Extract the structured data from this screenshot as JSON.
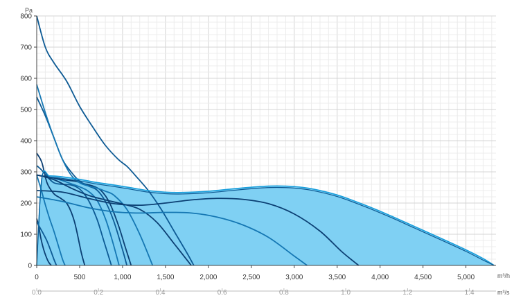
{
  "chart_data": {
    "type": "line",
    "y_unit": "Pa",
    "x_unit": "m³/h",
    "x2_unit": "m³/s",
    "xlim": [
      0,
      5350
    ],
    "ylim": [
      0,
      800
    ],
    "x_ticks": [
      0,
      500,
      1000,
      1500,
      2000,
      2500,
      3000,
      3500,
      4000,
      4500,
      5000
    ],
    "x_tick_labels": [
      "0",
      "500",
      "1,000",
      "1,500",
      "2,000",
      "2,500",
      "3,000",
      "3,500",
      "4,000",
      "4,500",
      "5,000"
    ],
    "x2_ticks": [
      0,
      0.2,
      0.4,
      0.6,
      0.8,
      1.0,
      1.2,
      1.4
    ],
    "x2_tick_labels": [
      "0.0",
      "0.2",
      "0.4",
      "0.6",
      "0.8",
      "1.0",
      "1.2",
      "1.4"
    ],
    "y_ticks": [
      0,
      100,
      200,
      300,
      400,
      500,
      600,
      700,
      800
    ],
    "y_tick_labels": [
      "0",
      "100",
      "200",
      "300",
      "400",
      "500",
      "600",
      "700",
      "800"
    ],
    "grid": true,
    "colors": {
      "area_fill": "#7fd0f3",
      "envelope_line": "#1a9fdc",
      "curve_dark": "#0b3f73",
      "curve_mid": "#0d5a94",
      "curve_light": "#1577b3"
    },
    "envelope": {
      "x": [
        0,
        60,
        150,
        300,
        500,
        700,
        900,
        1100,
        1300,
        1500,
        1700,
        2000,
        2300,
        2600,
        2800,
        3000,
        3200,
        3500,
        3800,
        4100,
        4400,
        4700,
        5000,
        5200,
        5330
      ],
      "y": [
        0,
        280,
        287,
        284,
        276,
        266,
        258,
        249,
        240,
        235,
        234,
        238,
        246,
        253,
        255,
        253,
        246,
        226,
        196,
        162,
        125,
        88,
        50,
        22,
        0
      ]
    },
    "envelope_inner": {
      "x": [
        0,
        60,
        150,
        300,
        500,
        700,
        900,
        1100,
        1300,
        1500,
        1700,
        2000,
        2300,
        2600,
        2800,
        3000,
        3200,
        3500,
        3800,
        4100,
        4400,
        4700,
        5000,
        5200,
        5330
      ],
      "y": [
        0,
        278,
        283,
        279,
        271,
        261,
        253,
        244,
        235,
        230,
        229,
        233,
        241,
        248,
        250,
        248,
        241,
        221,
        191,
        157,
        120,
        83,
        45,
        17,
        0
      ]
    },
    "series": [
      {
        "x": [
          0,
          20,
          50,
          80,
          110,
          140,
          170
        ],
        "y": [
          150,
          130,
          85,
          52,
          28,
          10,
          0
        ]
      },
      {
        "x": [
          0,
          40,
          80,
          120,
          160,
          200,
          230
        ],
        "y": [
          140,
          120,
          100,
          78,
          50,
          20,
          0
        ]
      },
      {
        "x": [
          0,
          50,
          100,
          150,
          200,
          250,
          300,
          330
        ],
        "y": [
          290,
          245,
          195,
          150,
          110,
          65,
          20,
          0
        ]
      },
      {
        "x": [
          0,
          60,
          120,
          200,
          280,
          360,
          440,
          520,
          560
        ],
        "y": [
          360,
          330,
          265,
          230,
          215,
          195,
          140,
          40,
          0
        ]
      },
      {
        "x": [
          0,
          60,
          120,
          200,
          300,
          400,
          500,
          600,
          700,
          780,
          870
        ],
        "y": [
          320,
          305,
          285,
          265,
          260,
          258,
          245,
          210,
          150,
          80,
          0
        ]
      },
      {
        "x": [
          0,
          100,
          200,
          300,
          400,
          500,
          600,
          700,
          800,
          880,
          960
        ],
        "y": [
          290,
          285,
          280,
          272,
          262,
          252,
          238,
          210,
          150,
          80,
          0
        ]
      },
      {
        "x": [
          0,
          150,
          300,
          450,
          550,
          650,
          750,
          850,
          950,
          1030,
          1100
        ],
        "y": [
          290,
          283,
          275,
          270,
          262,
          255,
          240,
          200,
          130,
          60,
          0
        ]
      },
      {
        "x": [
          0,
          100,
          200,
          300,
          400,
          500,
          600,
          700,
          800,
          900,
          1000,
          1050
        ],
        "y": [
          540,
          480,
          410,
          340,
          300,
          270,
          255,
          242,
          205,
          140,
          50,
          0
        ]
      },
      {
        "x": [
          0,
          100,
          200,
          300,
          400,
          500,
          600,
          700,
          800,
          900,
          1050,
          1200,
          1350
        ],
        "y": [
          580,
          490,
          410,
          340,
          290,
          265,
          255,
          248,
          238,
          225,
          180,
          100,
          0
        ]
      },
      {
        "x": [
          0,
          200,
          400,
          600,
          800,
          1000,
          1200,
          1400,
          1600,
          1800
        ],
        "y": [
          290,
          275,
          248,
          225,
          210,
          197,
          180,
          138,
          70,
          0
        ]
      },
      {
        "x": [
          0,
          100,
          200,
          350,
          500,
          650,
          800,
          950,
          1050,
          1150,
          1300,
          1450,
          1600,
          1750,
          1830
        ],
        "y": [
          800,
          700,
          650,
          590,
          510,
          445,
          385,
          340,
          318,
          288,
          240,
          180,
          110,
          40,
          0
        ]
      },
      {
        "x": [
          0,
          300,
          600,
          900,
          1200,
          1500,
          1800,
          2100,
          2400,
          2700,
          3000,
          3150
        ],
        "y": [
          220,
          205,
          185,
          172,
          168,
          170,
          168,
          155,
          130,
          90,
          30,
          0
        ]
      },
      {
        "x": [
          0,
          300,
          600,
          900,
          1200,
          1500,
          1800,
          2100,
          2400,
          2700,
          3000,
          3300,
          3550,
          3750
        ],
        "y": [
          240,
          235,
          215,
          198,
          193,
          200,
          210,
          215,
          212,
          198,
          165,
          110,
          45,
          0
        ]
      }
    ]
  }
}
